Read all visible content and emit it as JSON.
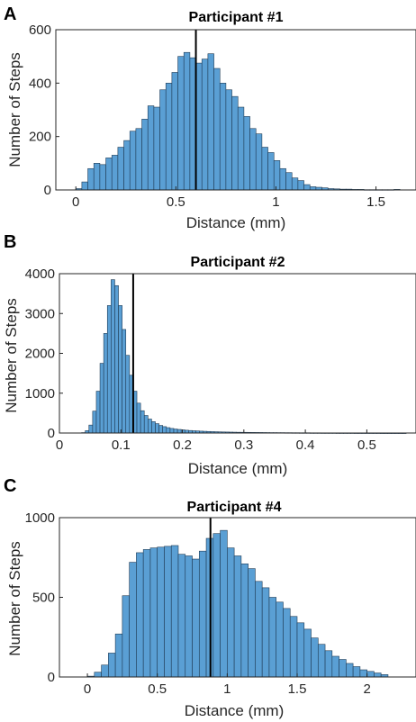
{
  "chart_data": [
    {
      "type": "bar",
      "panel_label": "A",
      "title": "Participant #1",
      "xlabel": "Distance (mm)",
      "ylabel": "Number of Steps",
      "xlim": [
        -0.1,
        1.7
      ],
      "ylim": [
        0,
        600
      ],
      "xticks": [
        0,
        0.5,
        1,
        1.5
      ],
      "xtick_labels": [
        "0",
        "0.5",
        "1",
        "1.5"
      ],
      "yticks": [
        0,
        200,
        400,
        600
      ],
      "ytick_labels": [
        "0",
        "200",
        "400",
        "600"
      ],
      "bin_width": 0.03,
      "bin_start": 0.0,
      "values": [
        5,
        30,
        80,
        100,
        95,
        120,
        130,
        160,
        185,
        220,
        230,
        265,
        315,
        310,
        375,
        400,
        440,
        500,
        515,
        495,
        475,
        490,
        510,
        455,
        400,
        375,
        350,
        310,
        275,
        230,
        210,
        160,
        140,
        110,
        80,
        65,
        45,
        35,
        20,
        12,
        10,
        8,
        5,
        4,
        3,
        3,
        2,
        2,
        1,
        1,
        1,
        1,
        1,
        2
      ],
      "marker_x": 0.6,
      "grid": false
    },
    {
      "type": "bar",
      "panel_label": "B",
      "title": "Participant #2",
      "xlabel": "Distance (mm)",
      "ylabel": "Number of Steps",
      "xlim": [
        0,
        0.58
      ],
      "ylim": [
        0,
        4000
      ],
      "xticks": [
        0,
        0.1,
        0.2,
        0.3,
        0.4,
        0.5
      ],
      "xtick_labels": [
        "0",
        "0.1",
        "0.2",
        "0.3",
        "0.4",
        "0.5"
      ],
      "yticks": [
        0,
        1000,
        2000,
        3000,
        4000
      ],
      "ytick_labels": [
        "0",
        "1000",
        "2000",
        "3000",
        "4000"
      ],
      "bin_width": 0.006,
      "bin_start": 0.0,
      "values": [
        0,
        0,
        0,
        0,
        0,
        0,
        10,
        60,
        200,
        550,
        1050,
        1750,
        2500,
        3200,
        3850,
        3700,
        3200,
        2600,
        1950,
        1450,
        1050,
        750,
        560,
        440,
        350,
        285,
        235,
        190,
        160,
        135,
        115,
        100,
        90,
        80,
        70,
        63,
        57,
        52,
        47,
        43,
        39,
        35,
        32,
        29,
        27,
        25,
        23,
        21,
        19,
        18,
        17,
        16,
        15,
        14,
        13,
        12,
        11,
        10,
        10,
        9,
        9,
        8,
        8,
        7,
        7,
        6,
        6,
        6,
        5,
        5,
        5,
        4,
        4,
        4,
        4,
        3,
        3,
        3,
        3,
        3,
        2,
        2,
        2,
        2,
        2,
        2,
        2,
        1,
        1,
        1,
        1,
        1,
        1,
        1
      ],
      "marker_x": 0.12,
      "grid": false
    },
    {
      "type": "bar",
      "panel_label": "C",
      "title": "Participant #4",
      "xlabel": "Distance (mm)",
      "ylabel": "Number of Steps",
      "xlim": [
        -0.2,
        2.35
      ],
      "ylim": [
        0,
        1000
      ],
      "xticks": [
        0,
        0.5,
        1,
        1.5,
        2
      ],
      "xtick_labels": [
        "0",
        "0.5",
        "1",
        "1.5",
        "2"
      ],
      "yticks": [
        0,
        500,
        1000
      ],
      "ytick_labels": [
        "0",
        "500",
        "1000"
      ],
      "bin_width": 0.05,
      "bin_start": 0.0,
      "values": [
        5,
        30,
        75,
        150,
        270,
        510,
        720,
        780,
        800,
        810,
        815,
        820,
        825,
        770,
        760,
        740,
        790,
        870,
        900,
        920,
        810,
        760,
        710,
        680,
        600,
        560,
        500,
        470,
        430,
        380,
        340,
        300,
        245,
        205,
        165,
        130,
        110,
        85,
        65,
        45,
        35,
        25,
        15
      ],
      "marker_x": 0.88,
      "grid": false
    }
  ]
}
